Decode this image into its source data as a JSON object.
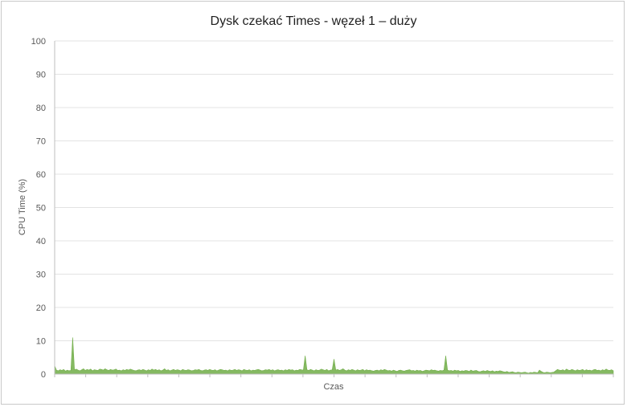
{
  "chart_data": {
    "type": "area",
    "title": "Dysk czekać Times - węzeł 1 – duży",
    "xlabel": "Czas",
    "ylabel": "CPU Time (%)",
    "ylim": [
      0,
      100
    ],
    "yticks": [
      "0",
      "10",
      "20",
      "30",
      "40",
      "50",
      "60",
      "70",
      "80",
      "90",
      "100"
    ],
    "grid": true,
    "legend": "none",
    "color": "#70ad47",
    "series": [
      {
        "values": [
          2.5,
          1.2,
          1.0,
          1.3,
          1.1,
          1.4,
          0.9,
          1.2,
          1.0,
          1.1,
          11.0,
          1.3,
          1.5,
          1.2,
          1.0,
          1.3,
          1.6,
          1.1,
          1.4,
          1.2,
          1.5,
          1.0,
          1.3,
          1.2,
          1.1,
          1.5,
          1.4,
          1.2,
          1.6,
          1.3,
          1.1,
          1.4,
          1.2,
          1.3,
          1.5,
          1.1,
          1.2,
          1.0,
          1.3,
          1.1,
          1.4,
          1.2,
          1.5,
          1.3,
          1.1,
          1.0,
          1.2,
          1.3,
          1.1,
          1.4,
          1.2,
          1.0,
          1.3,
          1.1,
          1.5,
          1.2,
          1.4,
          1.1,
          1.3,
          1.0,
          1.2,
          1.6,
          1.1,
          1.3,
          1.0,
          1.2,
          1.4,
          1.1,
          1.3,
          1.2,
          1.0,
          1.4,
          1.2,
          1.1,
          1.3,
          1.2,
          1.0,
          1.1,
          1.3,
          1.2,
          1.4,
          1.1,
          1.0,
          1.2,
          1.3,
          1.1,
          1.4,
          1.2,
          1.1,
          1.3,
          1.0,
          1.2,
          1.4,
          1.3,
          1.1,
          1.2,
          1.0,
          1.3,
          1.1,
          1.2,
          1.4,
          1.1,
          1.3,
          1.2,
          1.0,
          1.4,
          1.2,
          1.1,
          1.3,
          1.0,
          1.2,
          1.1,
          1.3,
          1.4,
          1.2,
          1.0,
          1.1,
          1.3,
          1.2,
          1.4,
          1.1,
          1.3,
          1.0,
          1.2,
          1.3,
          1.1,
          1.2,
          1.0,
          1.3,
          1.1,
          1.4,
          1.2,
          1.3,
          1.0,
          1.2,
          1.1,
          1.4,
          1.3,
          1.2,
          5.5,
          1.3,
          1.1,
          1.4,
          1.2,
          1.0,
          1.3,
          1.1,
          1.2,
          1.5,
          1.3,
          1.1,
          1.4,
          1.0,
          1.2,
          1.3,
          4.5,
          1.2,
          1.4,
          1.1,
          1.3,
          1.6,
          1.2,
          1.0,
          1.3,
          1.1,
          1.4,
          1.2,
          1.0,
          1.3,
          1.1,
          1.2,
          1.4,
          1.0,
          1.3,
          1.1,
          1.2,
          1.0,
          0.9,
          1.1,
          1.2,
          1.0,
          1.3,
          1.1,
          1.4,
          1.2,
          1.0,
          1.1,
          0.9,
          1.2,
          1.0,
          0.8,
          1.1,
          1.2,
          1.0,
          0.9,
          1.1,
          1.2,
          1.3,
          1.0,
          1.1,
          0.9,
          1.2,
          1.0,
          1.1,
          0.8,
          1.0,
          1.2,
          1.1,
          1.0,
          1.3,
          1.1,
          1.2,
          1.0,
          0.9,
          1.1,
          1.0,
          1.2,
          5.5,
          1.2,
          1.0,
          1.1,
          0.9,
          1.2,
          1.0,
          1.1,
          0.8,
          1.0,
          0.9,
          1.1,
          1.0,
          0.8,
          1.2,
          0.9,
          1.0,
          1.1,
          0.8,
          0.7,
          0.9,
          1.0,
          0.8,
          1.1,
          0.9,
          0.8,
          1.0,
          0.7,
          0.9,
          0.8,
          1.0,
          0.9,
          0.7,
          0.6,
          0.8,
          0.5,
          0.6,
          0.7,
          0.5,
          0.4,
          0.6,
          0.5,
          0.4,
          0.5,
          0.6,
          0.4,
          0.3,
          0.5,
          0.4,
          0.6,
          0.5,
          0.4,
          1.2,
          0.8,
          0.5,
          0.4,
          0.6,
          0.5,
          0.4,
          0.5,
          0.6,
          1.0,
          1.4,
          1.2,
          1.1,
          1.3,
          1.0,
          1.5,
          1.2,
          1.1,
          1.4,
          1.2,
          1.0,
          1.3,
          1.1,
          1.2,
          1.4,
          1.0,
          1.3,
          1.1,
          1.2,
          1.0,
          1.3,
          1.4,
          1.1,
          1.2,
          1.0,
          1.3,
          1.1,
          1.5,
          1.2,
          1.1,
          1.3,
          1.0
        ]
      }
    ]
  }
}
